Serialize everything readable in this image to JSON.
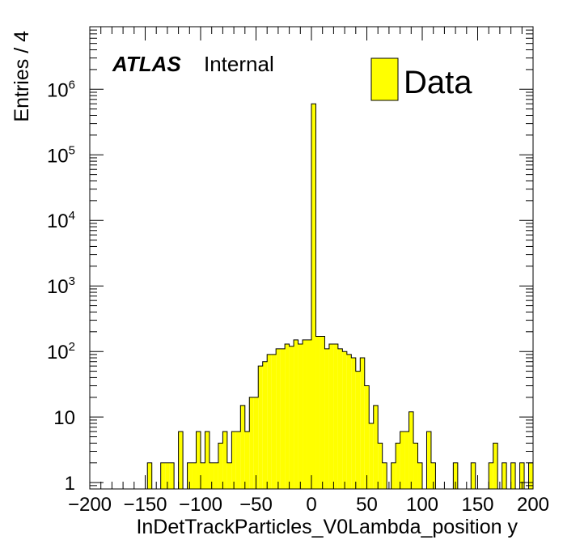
{
  "chart_data": {
    "type": "histogram",
    "xlabel": "InDetTrackParticles_V0Lambda_position y",
    "ylabel": "Entries / 4",
    "xlim": [
      -200,
      200
    ],
    "ylim": [
      0.8,
      9000000
    ],
    "yscale": "log",
    "bin_width": 4,
    "experiment_label": "ATLAS",
    "status_label": "Internal",
    "legend": {
      "label": "Data",
      "position": "top-right"
    },
    "series_color": "#ffff00",
    "line_color": "#000000",
    "x_tick_labels": [
      "−200",
      "−150",
      "−100",
      "−50",
      "0",
      "50",
      "100",
      "150",
      "200"
    ],
    "y_tick_labels": [
      {
        "value": 1,
        "base": "1",
        "exp": ""
      },
      {
        "value": 10,
        "base": "10",
        "exp": ""
      },
      {
        "value": 100,
        "base": "10",
        "exp": "2"
      },
      {
        "value": 1000,
        "base": "10",
        "exp": "3"
      },
      {
        "value": 10000,
        "base": "10",
        "exp": "4"
      },
      {
        "value": 100000,
        "base": "10",
        "exp": "5"
      },
      {
        "value": 1000000,
        "base": "10",
        "exp": "6"
      }
    ],
    "bins": [
      {
        "x": -148,
        "y": 2
      },
      {
        "x": -136,
        "y": 2
      },
      {
        "x": -132,
        "y": 2
      },
      {
        "x": -128,
        "y": 2
      },
      {
        "x": -120,
        "y": 6
      },
      {
        "x": -112,
        "y": 2
      },
      {
        "x": -108,
        "y": 2
      },
      {
        "x": -104,
        "y": 6
      },
      {
        "x": -100,
        "y": 2
      },
      {
        "x": -96,
        "y": 6
      },
      {
        "x": -92,
        "y": 2
      },
      {
        "x": -88,
        "y": 2
      },
      {
        "x": -84,
        "y": 4
      },
      {
        "x": -80,
        "y": 6
      },
      {
        "x": -76,
        "y": 2
      },
      {
        "x": -72,
        "y": 6
      },
      {
        "x": -68,
        "y": 6
      },
      {
        "x": -64,
        "y": 15
      },
      {
        "x": -60,
        "y": 6
      },
      {
        "x": -56,
        "y": 20
      },
      {
        "x": -52,
        "y": 20
      },
      {
        "x": -48,
        "y": 60
      },
      {
        "x": -44,
        "y": 70
      },
      {
        "x": -40,
        "y": 90
      },
      {
        "x": -36,
        "y": 90
      },
      {
        "x": -32,
        "y": 110
      },
      {
        "x": -28,
        "y": 110
      },
      {
        "x": -24,
        "y": 130
      },
      {
        "x": -20,
        "y": 120
      },
      {
        "x": -16,
        "y": 150
      },
      {
        "x": -12,
        "y": 130
      },
      {
        "x": -8,
        "y": 150
      },
      {
        "x": -4,
        "y": 150
      },
      {
        "x": 0,
        "y": 600000
      },
      {
        "x": 4,
        "y": 170
      },
      {
        "x": 8,
        "y": 170
      },
      {
        "x": 12,
        "y": 110
      },
      {
        "x": 16,
        "y": 130
      },
      {
        "x": 20,
        "y": 130
      },
      {
        "x": 24,
        "y": 110
      },
      {
        "x": 28,
        "y": 100
      },
      {
        "x": 32,
        "y": 90
      },
      {
        "x": 36,
        "y": 80
      },
      {
        "x": 40,
        "y": 50
      },
      {
        "x": 44,
        "y": 80
      },
      {
        "x": 48,
        "y": 30
      },
      {
        "x": 52,
        "y": 8
      },
      {
        "x": 56,
        "y": 15
      },
      {
        "x": 60,
        "y": 4
      },
      {
        "x": 64,
        "y": 2
      },
      {
        "x": 72,
        "y": 2
      },
      {
        "x": 76,
        "y": 4
      },
      {
        "x": 80,
        "y": 6
      },
      {
        "x": 84,
        "y": 6
      },
      {
        "x": 88,
        "y": 12
      },
      {
        "x": 92,
        "y": 4
      },
      {
        "x": 96,
        "y": 2
      },
      {
        "x": 104,
        "y": 6
      },
      {
        "x": 108,
        "y": 2
      },
      {
        "x": 128,
        "y": 2
      },
      {
        "x": 144,
        "y": 2
      },
      {
        "x": 160,
        "y": 2
      },
      {
        "x": 164,
        "y": 4
      },
      {
        "x": 172,
        "y": 2
      },
      {
        "x": 180,
        "y": 2
      },
      {
        "x": 188,
        "y": 2
      },
      {
        "x": 196,
        "y": 2
      }
    ]
  }
}
